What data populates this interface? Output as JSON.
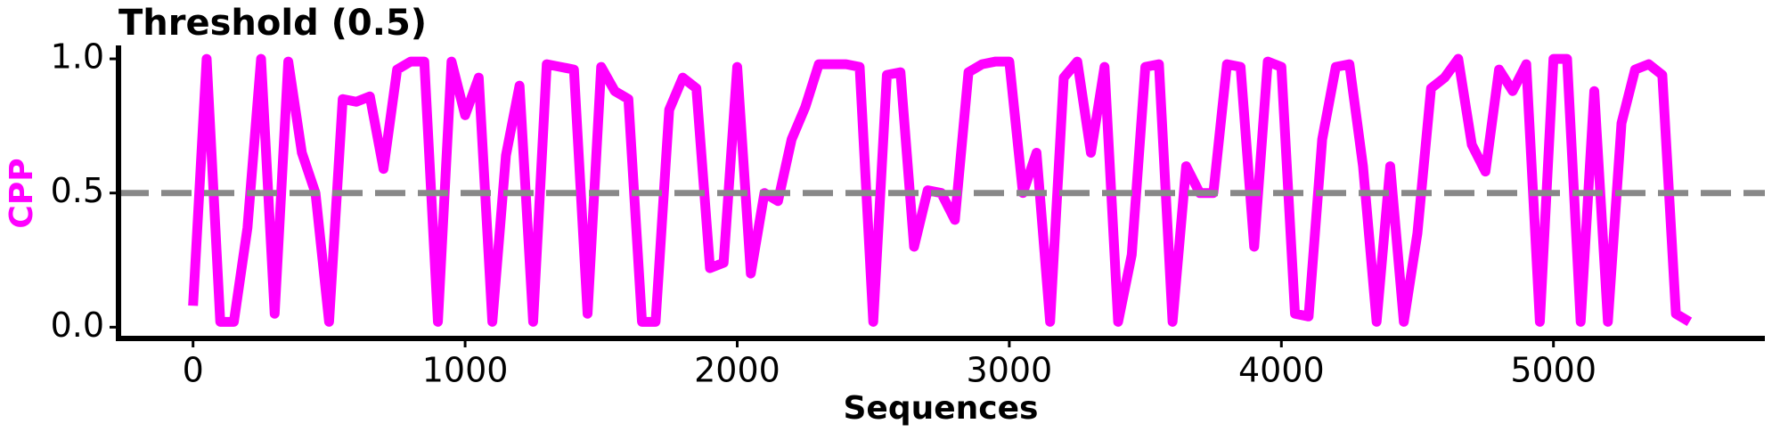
{
  "chart_data": {
    "type": "line",
    "title": "Threshold (0.5)",
    "x_label": "Sequences",
    "y_label": "CPP",
    "x": [
      0,
      50,
      100,
      150,
      200,
      250,
      300,
      350,
      400,
      450,
      500,
      550,
      600,
      650,
      700,
      750,
      800,
      850,
      900,
      950,
      1000,
      1050,
      1100,
      1150,
      1200,
      1250,
      1300,
      1350,
      1400,
      1450,
      1500,
      1550,
      1600,
      1650,
      1700,
      1750,
      1800,
      1850,
      1900,
      1950,
      2000,
      2050,
      2100,
      2150,
      2200,
      2250,
      2300,
      2350,
      2400,
      2450,
      2500,
      2550,
      2600,
      2650,
      2700,
      2750,
      2800,
      2850,
      2900,
      2950,
      3000,
      3050,
      3100,
      3150,
      3200,
      3250,
      3300,
      3350,
      3400,
      3450,
      3500,
      3550,
      3600,
      3650,
      3700,
      3750,
      3800,
      3850,
      3900,
      3950,
      4000,
      4050,
      4100,
      4150,
      4200,
      4250,
      4300,
      4350,
      4400,
      4450,
      4500,
      4550,
      4600,
      4650,
      4700,
      4750,
      4800,
      4850,
      4900,
      4950,
      5000,
      5050,
      5100,
      5150,
      5200,
      5250,
      5300,
      5350,
      5400,
      5450,
      5500
    ],
    "series": [
      {
        "name": "CPP",
        "color": "#ff00ff",
        "values": [
          0.08,
          1.0,
          0.02,
          0.02,
          0.37,
          1.0,
          0.05,
          0.99,
          0.65,
          0.5,
          0.02,
          0.85,
          0.84,
          0.86,
          0.59,
          0.96,
          0.99,
          0.99,
          0.02,
          0.99,
          0.79,
          0.93,
          0.02,
          0.64,
          0.9,
          0.02,
          0.98,
          0.97,
          0.96,
          0.05,
          0.97,
          0.88,
          0.85,
          0.02,
          0.02,
          0.81,
          0.93,
          0.89,
          0.22,
          0.24,
          0.97,
          0.2,
          0.5,
          0.47,
          0.7,
          0.82,
          0.98,
          0.98,
          0.98,
          0.97,
          0.02,
          0.94,
          0.95,
          0.3,
          0.51,
          0.5,
          0.4,
          0.95,
          0.98,
          0.99,
          0.99,
          0.5,
          0.65,
          0.02,
          0.93,
          0.99,
          0.65,
          0.97,
          0.02,
          0.27,
          0.97,
          0.98,
          0.02,
          0.6,
          0.5,
          0.5,
          0.98,
          0.97,
          0.3,
          0.99,
          0.97,
          0.05,
          0.04,
          0.7,
          0.97,
          0.98,
          0.6,
          0.02,
          0.6,
          0.02,
          0.35,
          0.89,
          0.93,
          1.0,
          0.68,
          0.58,
          0.96,
          0.88,
          0.98,
          0.02,
          1.0,
          1.0,
          0.02,
          0.88,
          0.02,
          0.76,
          0.96,
          0.98,
          0.94,
          0.05,
          0.02
        ]
      }
    ],
    "threshold": 0.5,
    "threshold_color": "#888888",
    "xlim": [
      -274,
      5777
    ],
    "ylim": [
      -0.042,
      1.05
    ],
    "xticks": [
      0,
      1000,
      2000,
      3000,
      4000,
      5000
    ],
    "yticks": [
      {
        "value": 0,
        "label": "0.0"
      },
      {
        "value": 0.5,
        "label": "0.5"
      },
      {
        "value": 1,
        "label": "1.0"
      }
    ]
  }
}
